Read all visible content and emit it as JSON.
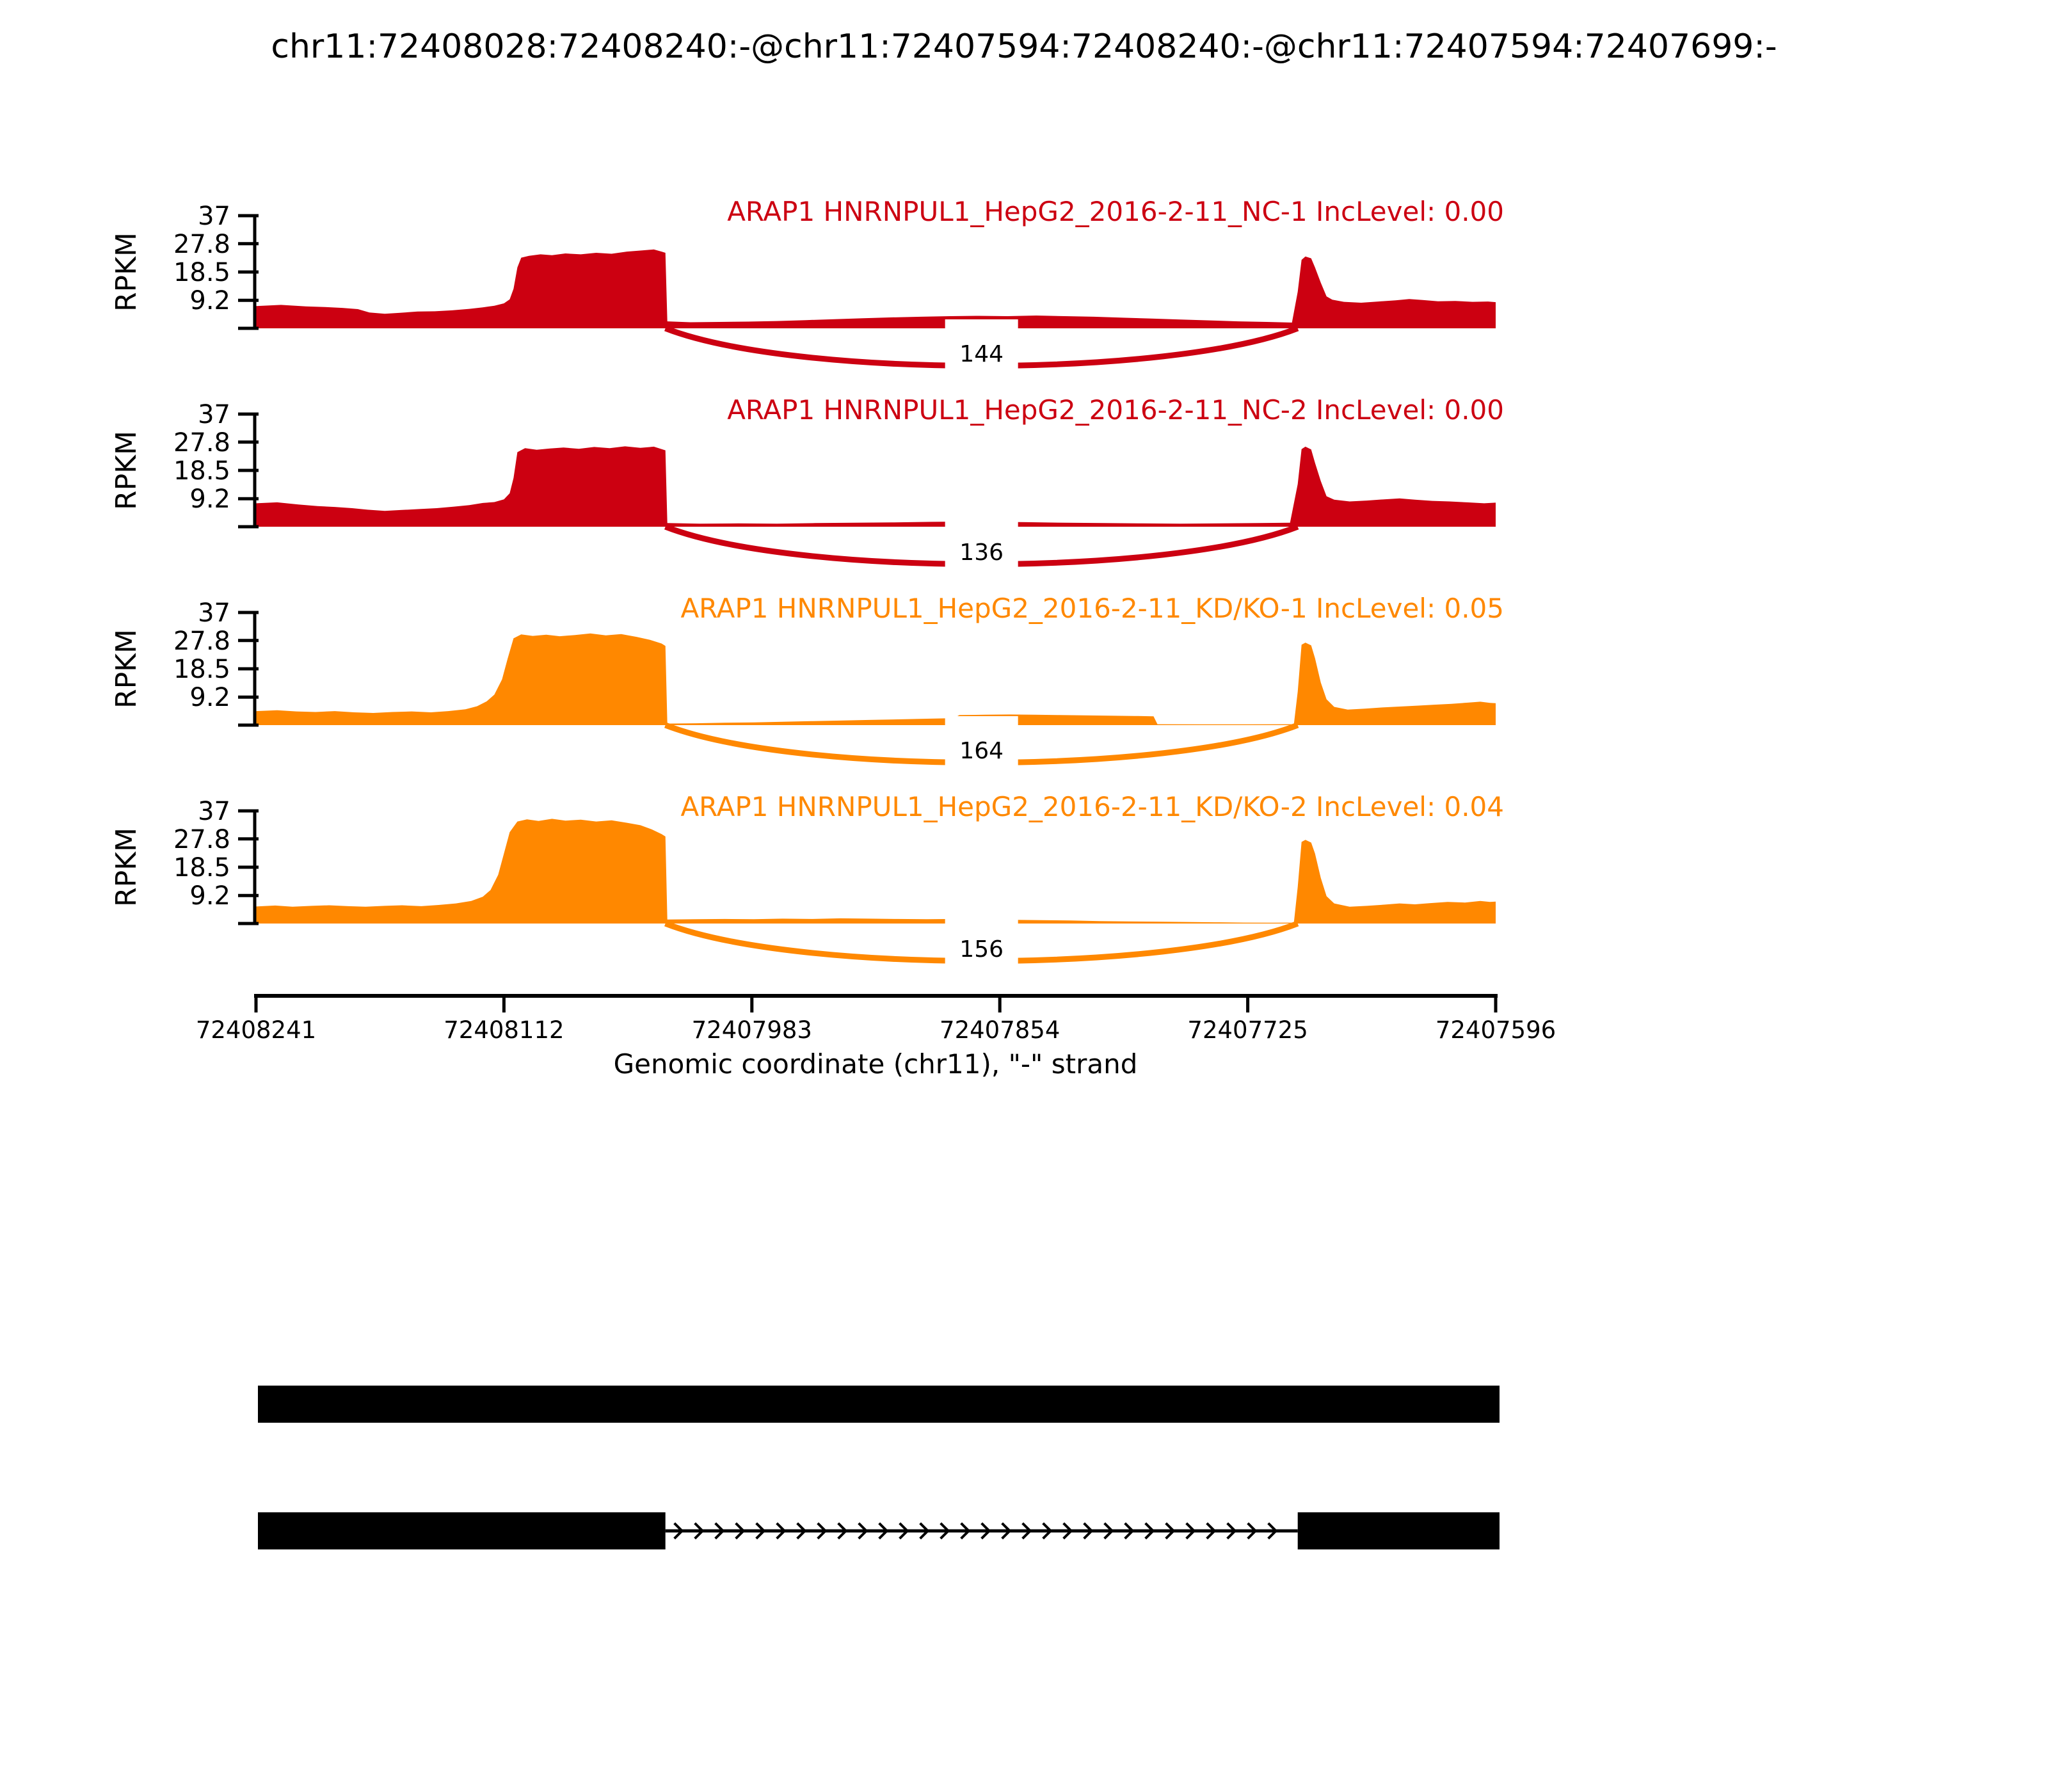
{
  "chart_data": {
    "type": "area",
    "title": "chr11:72408028:72408240:-@chr11:72407594:72408240:-@chr11:72407594:72407699:-",
    "xlabel": "Genomic coordinate (chr11), \"-\" strand",
    "ylabel": "RPKM",
    "x_axis": {
      "start": 72408241,
      "end": 72407596,
      "ticks": [
        72408241,
        72408112,
        72407983,
        72407854,
        72407725,
        72407596
      ]
    },
    "y_axis": {
      "ticks": [
        37,
        27.8,
        18.5,
        9.2
      ],
      "max": 37
    },
    "junction": {
      "from": 72408028,
      "to": 72407699
    },
    "colors": {
      "nc": "#CC0011",
      "kd": "#FF8800",
      "exon": "#000000"
    },
    "tracks": [
      {
        "label": "ARAP1 HNRNPUL1_HepG2_2016-2-11_NC-1 IncLevel: 0.00",
        "color": "#CC0011",
        "junction_count": 144,
        "coverage": [
          [
            72408241,
            7.3
          ],
          [
            72408228,
            7.7
          ],
          [
            72408215,
            7.2
          ],
          [
            72408205,
            7.0
          ],
          [
            72408196,
            6.7
          ],
          [
            72408188,
            6.3
          ],
          [
            72408182,
            5.2
          ],
          [
            72408174,
            4.8
          ],
          [
            72408166,
            5.1
          ],
          [
            72408157,
            5.5
          ],
          [
            72408148,
            5.6
          ],
          [
            72408139,
            5.9
          ],
          [
            72408130,
            6.4
          ],
          [
            72408123,
            6.9
          ],
          [
            72408117,
            7.4
          ],
          [
            72408112,
            8.2
          ],
          [
            72408109,
            9.5
          ],
          [
            72408107,
            13
          ],
          [
            72408105,
            20
          ],
          [
            72408103,
            23.2
          ],
          [
            72408099,
            23.8
          ],
          [
            72408093,
            24.3
          ],
          [
            72408087,
            24.0
          ],
          [
            72408080,
            24.6
          ],
          [
            72408072,
            24.3
          ],
          [
            72408064,
            24.8
          ],
          [
            72408056,
            24.5
          ],
          [
            72408048,
            25.2
          ],
          [
            72408040,
            25.6
          ],
          [
            72408034,
            25.9
          ],
          [
            72408030,
            25.2
          ],
          [
            72408028,
            24.8
          ],
          [
            72408027,
            2.3
          ],
          [
            72408015,
            2.0
          ],
          [
            72408000,
            2.1
          ],
          [
            72407985,
            2.2
          ],
          [
            72407970,
            2.4
          ],
          [
            72407955,
            2.7
          ],
          [
            72407940,
            3.0
          ],
          [
            72407925,
            3.3
          ],
          [
            72407910,
            3.6
          ],
          [
            72407895,
            3.8
          ],
          [
            72407880,
            4.0
          ],
          [
            72407865,
            4.1
          ],
          [
            72407850,
            4.0
          ],
          [
            72407835,
            4.2
          ],
          [
            72407820,
            4.0
          ],
          [
            72407805,
            3.8
          ],
          [
            72407790,
            3.5
          ],
          [
            72407775,
            3.2
          ],
          [
            72407760,
            2.9
          ],
          [
            72407745,
            2.6
          ],
          [
            72407730,
            2.3
          ],
          [
            72407715,
            2.1
          ],
          [
            72407702,
            1.9
          ],
          [
            72407699,
            12
          ],
          [
            72407697,
            22.5
          ],
          [
            72407695,
            23.6
          ],
          [
            72407692,
            23.0
          ],
          [
            72407690,
            20
          ],
          [
            72407687,
            15
          ],
          [
            72407684,
            10.5
          ],
          [
            72407681,
            9.4
          ],
          [
            72407675,
            8.7
          ],
          [
            72407666,
            8.4
          ],
          [
            72407657,
            8.8
          ],
          [
            72407648,
            9.2
          ],
          [
            72407641,
            9.6
          ],
          [
            72407634,
            9.3
          ],
          [
            72407626,
            8.9
          ],
          [
            72407617,
            9.0
          ],
          [
            72407608,
            8.7
          ],
          [
            72407600,
            8.8
          ],
          [
            72407596,
            8.6
          ]
        ]
      },
      {
        "label": "ARAP1 HNRNPUL1_HepG2_2016-2-11_NC-2 IncLevel: 0.00",
        "color": "#CC0011",
        "junction_count": 136,
        "coverage": [
          [
            72408241,
            7.7
          ],
          [
            72408230,
            8.0
          ],
          [
            72408219,
            7.3
          ],
          [
            72408209,
            6.8
          ],
          [
            72408200,
            6.5
          ],
          [
            72408191,
            6.1
          ],
          [
            72408183,
            5.6
          ],
          [
            72408174,
            5.2
          ],
          [
            72408165,
            5.5
          ],
          [
            72408156,
            5.8
          ],
          [
            72408147,
            6.1
          ],
          [
            72408138,
            6.6
          ],
          [
            72408130,
            7.1
          ],
          [
            72408123,
            7.8
          ],
          [
            72408117,
            8.1
          ],
          [
            72408112,
            9.0
          ],
          [
            72408109,
            11
          ],
          [
            72408107,
            16
          ],
          [
            72408105,
            24.5
          ],
          [
            72408101,
            25.8
          ],
          [
            72408095,
            25.3
          ],
          [
            72408088,
            25.7
          ],
          [
            72408081,
            26.0
          ],
          [
            72408073,
            25.6
          ],
          [
            72408065,
            26.2
          ],
          [
            72408057,
            25.8
          ],
          [
            72408049,
            26.4
          ],
          [
            72408041,
            25.9
          ],
          [
            72408034,
            26.3
          ],
          [
            72408028,
            25.1
          ],
          [
            72408027,
            1.2
          ],
          [
            72408010,
            1.0
          ],
          [
            72407990,
            1.1
          ],
          [
            72407970,
            1.0
          ],
          [
            72407950,
            1.2
          ],
          [
            72407930,
            1.3
          ],
          [
            72407910,
            1.4
          ],
          [
            72407890,
            1.6
          ],
          [
            72407870,
            1.7
          ],
          [
            72407855,
            1.6
          ],
          [
            72407840,
            1.5
          ],
          [
            72407820,
            1.3
          ],
          [
            72407800,
            1.2
          ],
          [
            72407780,
            1.1
          ],
          [
            72407760,
            1.0
          ],
          [
            72407740,
            1.1
          ],
          [
            72407720,
            1.2
          ],
          [
            72407703,
            1.3
          ],
          [
            72407699,
            14
          ],
          [
            72407697,
            25.5
          ],
          [
            72407695,
            26.3
          ],
          [
            72407692,
            25.4
          ],
          [
            72407690,
            21
          ],
          [
            72407687,
            15
          ],
          [
            72407684,
            10
          ],
          [
            72407680,
            8.9
          ],
          [
            72407672,
            8.3
          ],
          [
            72407663,
            8.6
          ],
          [
            72407654,
            9.0
          ],
          [
            72407646,
            9.3
          ],
          [
            72407638,
            8.9
          ],
          [
            72407629,
            8.5
          ],
          [
            72407620,
            8.3
          ],
          [
            72407611,
            8.0
          ],
          [
            72407602,
            7.7
          ],
          [
            72407596,
            7.9
          ]
        ]
      },
      {
        "label": "ARAP1 HNRNPUL1_HepG2_2016-2-11_KD/KO-1 IncLevel: 0.05",
        "color": "#FF8800",
        "junction_count": 164,
        "coverage": [
          [
            72408241,
            4.6
          ],
          [
            72408230,
            4.9
          ],
          [
            72408220,
            4.5
          ],
          [
            72408210,
            4.3
          ],
          [
            72408200,
            4.6
          ],
          [
            72408190,
            4.2
          ],
          [
            72408180,
            4.0
          ],
          [
            72408170,
            4.3
          ],
          [
            72408160,
            4.5
          ],
          [
            72408150,
            4.2
          ],
          [
            72408141,
            4.6
          ],
          [
            72408132,
            5.2
          ],
          [
            72408126,
            6.2
          ],
          [
            72408121,
            7.8
          ],
          [
            72408117,
            10
          ],
          [
            72408113,
            15
          ],
          [
            72408110,
            22
          ],
          [
            72408107,
            28.5
          ],
          [
            72408103,
            29.8
          ],
          [
            72408097,
            29.3
          ],
          [
            72408090,
            29.7
          ],
          [
            72408083,
            29.2
          ],
          [
            72408075,
            29.6
          ],
          [
            72408067,
            30.1
          ],
          [
            72408059,
            29.5
          ],
          [
            72408051,
            29.9
          ],
          [
            72408043,
            29.0
          ],
          [
            72408036,
            28.0
          ],
          [
            72408030,
            26.8
          ],
          [
            72408028,
            26.0
          ],
          [
            72408027,
            0.5
          ],
          [
            72408012,
            0.6
          ],
          [
            72407997,
            0.8
          ],
          [
            72407982,
            0.9
          ],
          [
            72407967,
            1.1
          ],
          [
            72407952,
            1.3
          ],
          [
            72407937,
            1.5
          ],
          [
            72407922,
            1.7
          ],
          [
            72407907,
            1.9
          ],
          [
            72407892,
            2.1
          ],
          [
            72407878,
            2.3
          ],
          [
            72407875,
            3.3
          ],
          [
            72407862,
            3.4
          ],
          [
            72407849,
            3.5
          ],
          [
            72407836,
            3.4
          ],
          [
            72407823,
            3.3
          ],
          [
            72407810,
            3.2
          ],
          [
            72407797,
            3.1
          ],
          [
            72407784,
            3.0
          ],
          [
            72407774,
            2.9
          ],
          [
            72407772,
            0.3
          ],
          [
            72407750,
            0.25
          ],
          [
            72407725,
            0.25
          ],
          [
            72407701,
            0.3
          ],
          [
            72407699,
            11
          ],
          [
            72407697,
            26.4
          ],
          [
            72407695,
            27.1
          ],
          [
            72407692,
            26.2
          ],
          [
            72407690,
            22
          ],
          [
            72407687,
            14
          ],
          [
            72407684,
            8.5
          ],
          [
            72407680,
            6.0
          ],
          [
            72407673,
            5.1
          ],
          [
            72407664,
            5.4
          ],
          [
            72407655,
            5.8
          ],
          [
            72407646,
            6.1
          ],
          [
            72407637,
            6.4
          ],
          [
            72407628,
            6.7
          ],
          [
            72407619,
            7.0
          ],
          [
            72407610,
            7.4
          ],
          [
            72407604,
            7.7
          ],
          [
            72407599,
            7.3
          ],
          [
            72407596,
            7.2
          ]
        ]
      },
      {
        "label": "ARAP1 HNRNPUL1_HepG2_2016-2-11_KD/KO-2 IncLevel: 0.04",
        "color": "#FF8800",
        "junction_count": 156,
        "coverage": [
          [
            72408241,
            5.6
          ],
          [
            72408231,
            5.9
          ],
          [
            72408222,
            5.5
          ],
          [
            72408212,
            5.8
          ],
          [
            72408203,
            6.0
          ],
          [
            72408193,
            5.7
          ],
          [
            72408184,
            5.5
          ],
          [
            72408174,
            5.8
          ],
          [
            72408165,
            6.0
          ],
          [
            72408155,
            5.7
          ],
          [
            72408146,
            6.1
          ],
          [
            72408137,
            6.6
          ],
          [
            72408129,
            7.4
          ],
          [
            72408123,
            8.8
          ],
          [
            72408119,
            11
          ],
          [
            72408115,
            16
          ],
          [
            72408112,
            23
          ],
          [
            72408109,
            30
          ],
          [
            72408105,
            33.5
          ],
          [
            72408100,
            34.2
          ],
          [
            72408094,
            33.7
          ],
          [
            72408087,
            34.4
          ],
          [
            72408080,
            33.8
          ],
          [
            72408072,
            34.1
          ],
          [
            72408064,
            33.5
          ],
          [
            72408056,
            33.9
          ],
          [
            72408048,
            33.1
          ],
          [
            72408041,
            32.3
          ],
          [
            72408035,
            30.9
          ],
          [
            72408030,
            29.4
          ],
          [
            72408028,
            28.6
          ],
          [
            72408027,
            1.3
          ],
          [
            72408012,
            1.4
          ],
          [
            72407997,
            1.5
          ],
          [
            72407982,
            1.4
          ],
          [
            72407967,
            1.6
          ],
          [
            72407952,
            1.5
          ],
          [
            72407937,
            1.7
          ],
          [
            72407922,
            1.6
          ],
          [
            72407907,
            1.5
          ],
          [
            72407892,
            1.4
          ],
          [
            72407877,
            1.5
          ],
          [
            72407862,
            1.4
          ],
          [
            72407847,
            1.2
          ],
          [
            72407832,
            1.1
          ],
          [
            72407817,
            1.0
          ],
          [
            72407802,
            0.8
          ],
          [
            72407787,
            0.7
          ],
          [
            72407772,
            0.6
          ],
          [
            72407757,
            0.5
          ],
          [
            72407742,
            0.4
          ],
          [
            72407727,
            0.3
          ],
          [
            72407712,
            0.25
          ],
          [
            72407701,
            0.3
          ],
          [
            72407699,
            12
          ],
          [
            72407697,
            26.8
          ],
          [
            72407695,
            27.5
          ],
          [
            72407692,
            26.6
          ],
          [
            72407690,
            23
          ],
          [
            72407687,
            15
          ],
          [
            72407684,
            9
          ],
          [
            72407680,
            6.6
          ],
          [
            72407672,
            5.5
          ],
          [
            72407663,
            5.8
          ],
          [
            72407654,
            6.2
          ],
          [
            72407646,
            6.6
          ],
          [
            72407638,
            6.3
          ],
          [
            72407630,
            6.7
          ],
          [
            72407621,
            7.1
          ],
          [
            72407612,
            6.9
          ],
          [
            72407604,
            7.4
          ],
          [
            72407599,
            7.1
          ],
          [
            72407596,
            7.2
          ]
        ]
      }
    ],
    "gene_model": {
      "transcripts": [
        {
          "exons": [
            [
              72408240,
              72407594
            ]
          ]
        },
        {
          "exons": [
            [
              72408240,
              72408028
            ],
            [
              72407699,
              72407594
            ]
          ],
          "intron": [
            72408028,
            72407699
          ],
          "arrows": true
        }
      ]
    }
  }
}
